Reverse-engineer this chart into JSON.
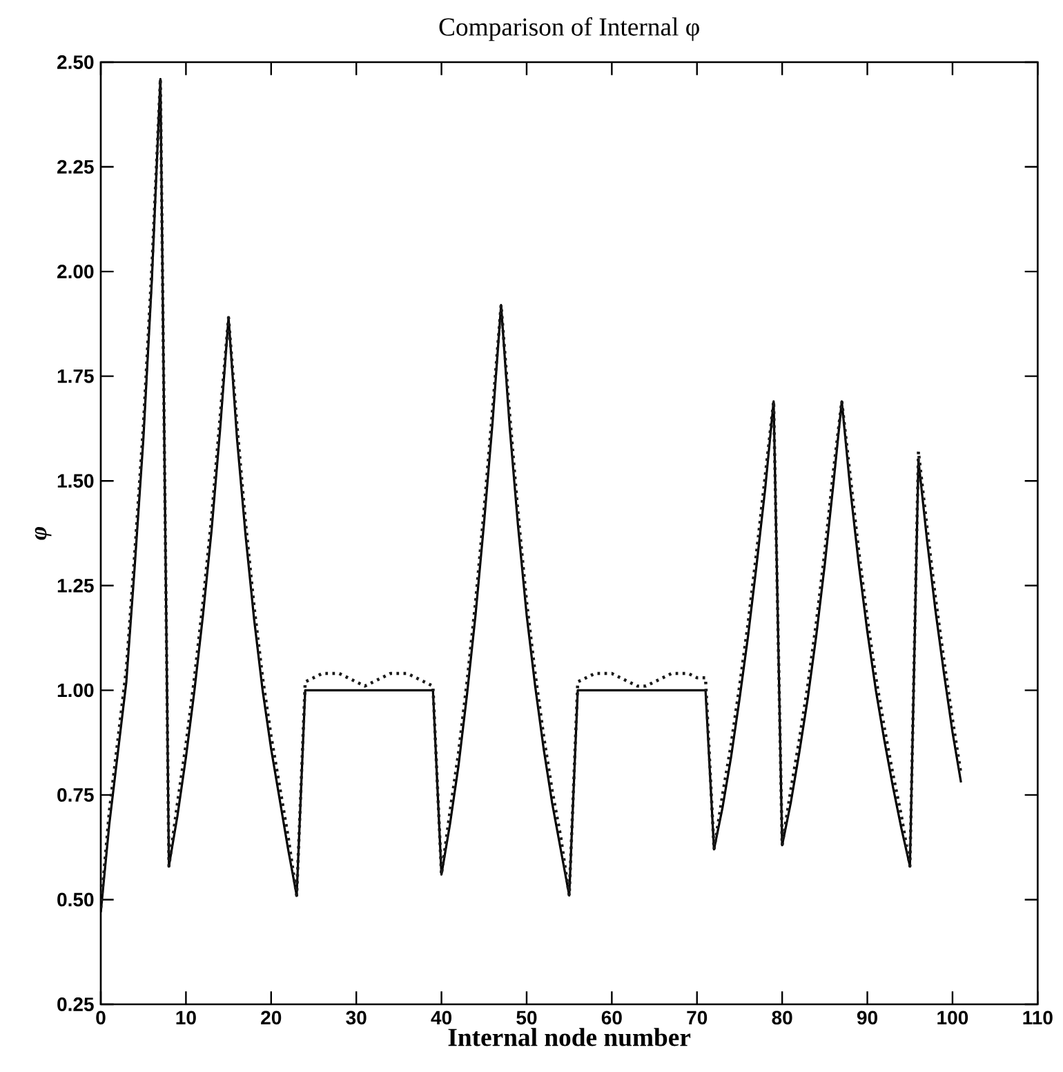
{
  "chart_data": {
    "type": "line",
    "title": "Comparison of Internal φ",
    "xlabel": "Internal node number",
    "ylabel": "φ",
    "x": [
      0,
      1,
      2,
      3,
      4,
      5,
      6,
      7,
      8,
      9,
      10,
      11,
      12,
      13,
      14,
      15,
      16,
      17,
      18,
      19,
      20,
      21,
      22,
      23,
      24,
      25,
      26,
      27,
      28,
      29,
      30,
      31,
      32,
      33,
      34,
      35,
      36,
      37,
      38,
      39,
      40,
      41,
      42,
      43,
      44,
      45,
      46,
      47,
      48,
      49,
      50,
      51,
      52,
      53,
      54,
      55,
      56,
      57,
      58,
      59,
      60,
      61,
      62,
      63,
      64,
      65,
      66,
      67,
      68,
      69,
      70,
      71,
      72,
      73,
      74,
      75,
      76,
      77,
      78,
      79,
      80,
      81,
      82,
      83,
      84,
      85,
      86,
      87,
      88,
      89,
      90,
      91,
      92,
      93,
      94,
      95,
      96,
      97,
      98,
      99,
      100,
      101
    ],
    "series": [
      {
        "color": "#000000",
        "line_style": "solid",
        "values": [
          0.47,
          0.68,
          0.85,
          1.02,
          1.3,
          1.6,
          1.98,
          2.46,
          0.58,
          0.7,
          0.84,
          1.0,
          1.18,
          1.38,
          1.62,
          1.89,
          1.6,
          1.37,
          1.17,
          1.0,
          0.86,
          0.74,
          0.62,
          0.51,
          1.0,
          1.0,
          1.0,
          1.0,
          1.0,
          1.0,
          1.0,
          1.0,
          1.0,
          1.0,
          1.0,
          1.0,
          1.0,
          1.0,
          1.0,
          1.0,
          0.56,
          0.68,
          0.82,
          0.99,
          1.18,
          1.4,
          1.64,
          1.92,
          1.63,
          1.39,
          1.18,
          1.01,
          0.86,
          0.73,
          0.62,
          0.51,
          1.0,
          1.0,
          1.0,
          1.0,
          1.0,
          1.0,
          1.0,
          1.0,
          1.0,
          1.0,
          1.0,
          1.0,
          1.0,
          1.0,
          1.0,
          1.0,
          0.62,
          0.72,
          0.84,
          0.98,
          1.13,
          1.3,
          1.48,
          1.69,
          0.63,
          0.73,
          0.85,
          0.98,
          1.13,
          1.3,
          1.49,
          1.69,
          1.48,
          1.3,
          1.14,
          1.0,
          0.88,
          0.77,
          0.67,
          0.58,
          1.55,
          1.36,
          1.19,
          1.04,
          0.9,
          0.78
        ]
      },
      {
        "color": "#1a1a1a",
        "line_style": "dotted",
        "values": [
          0.48,
          0.71,
          0.88,
          1.05,
          1.33,
          1.63,
          2.01,
          2.46,
          0.58,
          0.73,
          0.87,
          1.03,
          1.21,
          1.41,
          1.65,
          1.89,
          1.63,
          1.4,
          1.2,
          1.03,
          0.89,
          0.77,
          0.65,
          0.51,
          1.02,
          1.03,
          1.04,
          1.04,
          1.04,
          1.03,
          1.02,
          1.01,
          1.02,
          1.03,
          1.04,
          1.04,
          1.04,
          1.03,
          1.02,
          1.01,
          0.56,
          0.71,
          0.85,
          1.02,
          1.21,
          1.43,
          1.67,
          1.92,
          1.66,
          1.42,
          1.21,
          1.04,
          0.89,
          0.76,
          0.65,
          0.51,
          1.02,
          1.03,
          1.04,
          1.04,
          1.04,
          1.03,
          1.02,
          1.01,
          1.01,
          1.02,
          1.03,
          1.04,
          1.04,
          1.04,
          1.03,
          1.03,
          0.62,
          0.75,
          0.87,
          1.01,
          1.16,
          1.33,
          1.51,
          1.69,
          0.63,
          0.76,
          0.88,
          1.01,
          1.16,
          1.33,
          1.52,
          1.69,
          1.51,
          1.33,
          1.17,
          1.03,
          0.91,
          0.8,
          0.7,
          0.58,
          1.57,
          1.39,
          1.22,
          1.07,
          0.93,
          0.8
        ]
      }
    ],
    "xlim": [
      0,
      110
    ],
    "xticks": [
      0,
      10,
      20,
      30,
      40,
      50,
      60,
      70,
      80,
      90,
      100,
      110
    ],
    "ylim": [
      0.25,
      2.5
    ],
    "yticks": [
      {
        "value": 0.25,
        "label": "0.25"
      },
      {
        "value": 0.5,
        "label": "0.50"
      },
      {
        "value": 0.75,
        "label": "0.75"
      },
      {
        "value": 1.0,
        "label": "1.00"
      },
      {
        "value": 1.25,
        "label": "1.25"
      },
      {
        "value": 1.5,
        "label": "1.50"
      },
      {
        "value": 1.75,
        "label": "1.75"
      },
      {
        "value": 2.0,
        "label": "2.00"
      },
      {
        "value": 2.25,
        "label": "2.25"
      },
      {
        "value": 2.5,
        "label": "2.50"
      }
    ],
    "grid": false,
    "marker": "none"
  }
}
